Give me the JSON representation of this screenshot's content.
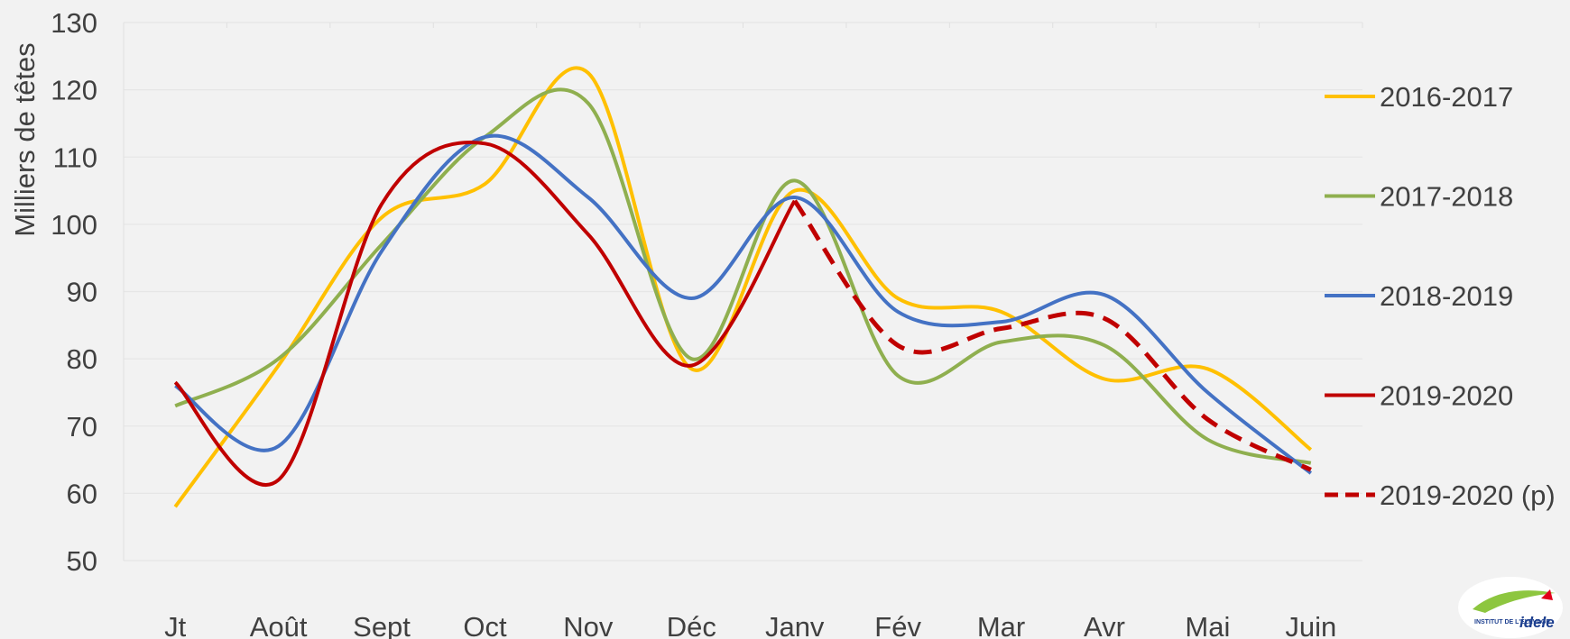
{
  "chart_data": {
    "type": "line",
    "title": "",
    "xlabel": "",
    "ylabel": "Milliers de têtes",
    "ylim": [
      50,
      130
    ],
    "yticks": [
      50,
      60,
      70,
      80,
      90,
      100,
      110,
      120,
      130
    ],
    "grid": true,
    "legend_position": "right",
    "categories": [
      "Jt",
      "Août",
      "Sept",
      "Oct",
      "Nov",
      "Déc",
      "Janv",
      "Fév",
      "Mar",
      "Avr",
      "Mai",
      "Juin"
    ],
    "series": [
      {
        "name": "2016-2017",
        "color": "#ffc000",
        "dashed": false,
        "values": [
          58,
          79,
          101,
          106,
          122.5,
          78.5,
          105,
          89,
          87,
          77,
          78.5,
          66.5
        ]
      },
      {
        "name": "2017-2018",
        "color": "#8faf4f",
        "dashed": false,
        "values": [
          73,
          80,
          97,
          113,
          118,
          80,
          106.5,
          77.5,
          82.5,
          82,
          68,
          64.5
        ]
      },
      {
        "name": "2018-2019",
        "color": "#4472c4",
        "dashed": false,
        "values": [
          76,
          67,
          96,
          113,
          104,
          89,
          104,
          87,
          85.5,
          89.5,
          75,
          63
        ]
      },
      {
        "name": "2019-2020",
        "color": "#c00000",
        "dashed": false,
        "values": [
          76.5,
          62,
          103,
          112,
          98.5,
          79,
          103.5,
          null,
          null,
          null,
          null,
          null
        ]
      },
      {
        "name": "2019-2020 (p)",
        "color": "#c00000",
        "dashed": true,
        "values": [
          null,
          null,
          null,
          null,
          null,
          null,
          103.5,
          82,
          84.5,
          86,
          71,
          63.5
        ]
      }
    ]
  },
  "logo": {
    "brand": "idele",
    "caption": "INSTITUT DE L'ÉLEVAGE"
  }
}
